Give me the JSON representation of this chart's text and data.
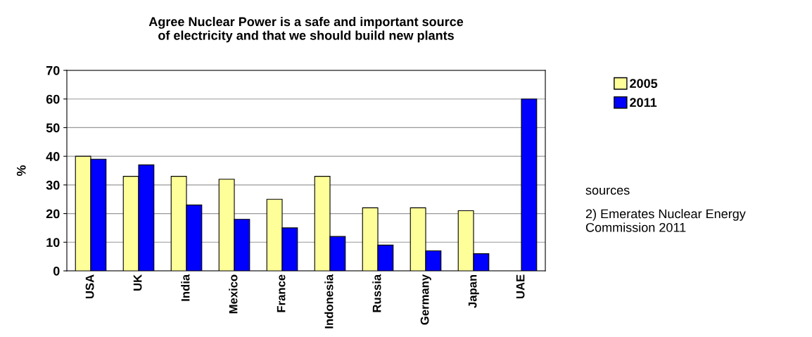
{
  "chart_data": {
    "type": "bar",
    "title": "Agree Nuclear Power is a safe and important source\nof electricity and that we should build new plants",
    "ylabel": "%",
    "categories": [
      "USA",
      "UK",
      "India",
      "Mexico",
      "France",
      "Indonesia",
      "Russia",
      "Germany",
      "Japan",
      "UAE"
    ],
    "series": [
      {
        "name": "2005",
        "color": "#ffff99",
        "values": [
          40,
          33,
          33,
          32,
          25,
          33,
          22,
          22,
          21,
          null
        ]
      },
      {
        "name": "2011",
        "color": "#0000ff",
        "values": [
          39,
          37,
          23,
          18,
          15,
          12,
          9,
          7,
          6,
          60
        ]
      }
    ],
    "ylim": [
      0,
      70
    ],
    "yticks": [
      0,
      10,
      20,
      30,
      40,
      50,
      60,
      70
    ],
    "grid": "y",
    "legend": "top right",
    "annotations": [
      "sources",
      "2) Emerates Nuclear Energy Commission 2011"
    ]
  }
}
